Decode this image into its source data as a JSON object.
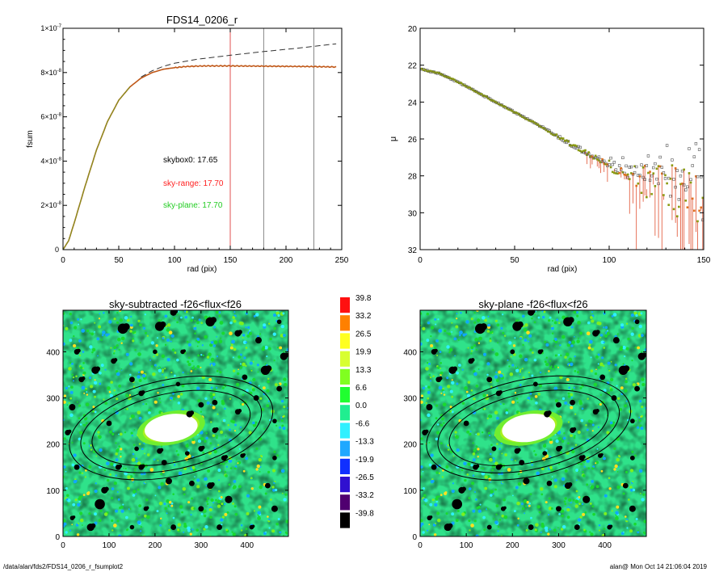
{
  "chart_data": [
    {
      "type": "line",
      "title": "FDS14_0206_r",
      "xlabel": "rad (pix)",
      "ylabel": "fsum",
      "xlim": [
        0,
        250
      ],
      "ylim": [
        0,
        1e-07
      ],
      "x_ticks": [
        "0",
        "50",
        "100",
        "150",
        "200",
        "250"
      ],
      "y_ticks": [
        {
          "mantissa": "0",
          "exp": ""
        },
        {
          "mantissa": "2×10",
          "exp": "-8"
        },
        {
          "mantissa": "4×10",
          "exp": "-8"
        },
        {
          "mantissa": "6×10",
          "exp": "-8"
        },
        {
          "mantissa": "8×10",
          "exp": "-8"
        },
        {
          "mantissa": "1×10",
          "exp": "-7"
        }
      ],
      "vertical_lines": [
        {
          "x": 150,
          "color": "#e05050"
        },
        {
          "x": 180,
          "color": "#888888"
        },
        {
          "x": 225,
          "color": "#888888"
        }
      ],
      "annotations": [
        {
          "text": "skybox0: 17.65",
          "color": "#000000"
        },
        {
          "text": "sky-range: 17.70",
          "color": "#ff2020"
        },
        {
          "text": "sky-plane: 17.70",
          "color": "#22cc22"
        }
      ],
      "series": [
        {
          "style": "solid",
          "color": "#c05818",
          "x": [
            0,
            5,
            10,
            20,
            30,
            40,
            50,
            60,
            70,
            80,
            90,
            100,
            110,
            120,
            130,
            140,
            150,
            175,
            200,
            225,
            245
          ],
          "y": [
            0,
            4e-09,
            1.2e-08,
            2.9e-08,
            4.5e-08,
            5.8e-08,
            6.75e-08,
            7.35e-08,
            7.75e-08,
            8e-08,
            8.15e-08,
            8.22e-08,
            8.27e-08,
            8.29e-08,
            8.3e-08,
            8.3e-08,
            8.3e-08,
            8.29e-08,
            8.28e-08,
            8.27e-08,
            8.25e-08
          ]
        },
        {
          "style": "dashed",
          "color": "#333333",
          "x": [
            70,
            80,
            90,
            100,
            120,
            150,
            180,
            210,
            245
          ],
          "y": [
            7.8e-08,
            8.08e-08,
            8.28e-08,
            8.42e-08,
            8.6e-08,
            8.78e-08,
            8.95e-08,
            9.1e-08,
            9.3e-08
          ]
        }
      ]
    },
    {
      "type": "scatter",
      "xlabel": "rad (pix)",
      "ylabel": "μ",
      "xlim": [
        0,
        150
      ],
      "ylim": [
        32,
        20
      ],
      "x_ticks": [
        "0",
        "50",
        "100",
        "150"
      ],
      "y_ticks": [
        "20",
        "22",
        "24",
        "26",
        "28",
        "30",
        "32"
      ],
      "trend": {
        "x": [
          0,
          10,
          20,
          30,
          40,
          50,
          60,
          70,
          80,
          90,
          100,
          110,
          120,
          130,
          140,
          150
        ],
        "y": [
          22.2,
          22.45,
          22.9,
          23.45,
          24.0,
          24.55,
          25.1,
          25.7,
          26.3,
          26.85,
          27.4,
          27.9,
          28.3,
          28.7,
          29.0,
          29.3
        ]
      }
    },
    {
      "type": "heatmap",
      "title": "sky-subtracted -f26<flux<f26",
      "xlim": [
        0,
        490
      ],
      "ylim": [
        0,
        490
      ],
      "x_ticks": [
        "0",
        "100",
        "200",
        "300",
        "400"
      ],
      "y_ticks": [
        "0",
        "100",
        "200",
        "300",
        "400"
      ],
      "colorbar": [
        {
          "label": "39.8",
          "color": "#ff1010"
        },
        {
          "label": "33.2",
          "color": "#ff8000"
        },
        {
          "label": "26.5",
          "color": "#ffff20"
        },
        {
          "label": "19.9",
          "color": "#d8ff30"
        },
        {
          "label": "13.3",
          "color": "#80ff20"
        },
        {
          "label": "6.6",
          "color": "#20ff30"
        },
        {
          "label": "0.0",
          "color": "#20ee90"
        },
        {
          "label": "-6.6",
          "color": "#30f0ff"
        },
        {
          "label": "-13.3",
          "color": "#20a8ff"
        },
        {
          "label": "-19.9",
          "color": "#1030ff"
        },
        {
          "label": "-26.5",
          "color": "#3010d0"
        },
        {
          "label": "-33.2",
          "color": "#500070"
        },
        {
          "label": "-39.8",
          "color": "#000000"
        }
      ]
    },
    {
      "type": "heatmap",
      "title": "sky-plane -f26<flux<f26",
      "xlim": [
        0,
        490
      ],
      "ylim": [
        0,
        490
      ],
      "x_ticks": [
        "0",
        "100",
        "200",
        "300",
        "400"
      ],
      "y_ticks": [
        "0",
        "100",
        "200",
        "300",
        "400"
      ]
    }
  ],
  "footer": {
    "left": "/data/alan/fds2/FDS14_0206_r_fsumplot2",
    "right": "alan@  Mon Oct 14 21:06:04 2019"
  }
}
